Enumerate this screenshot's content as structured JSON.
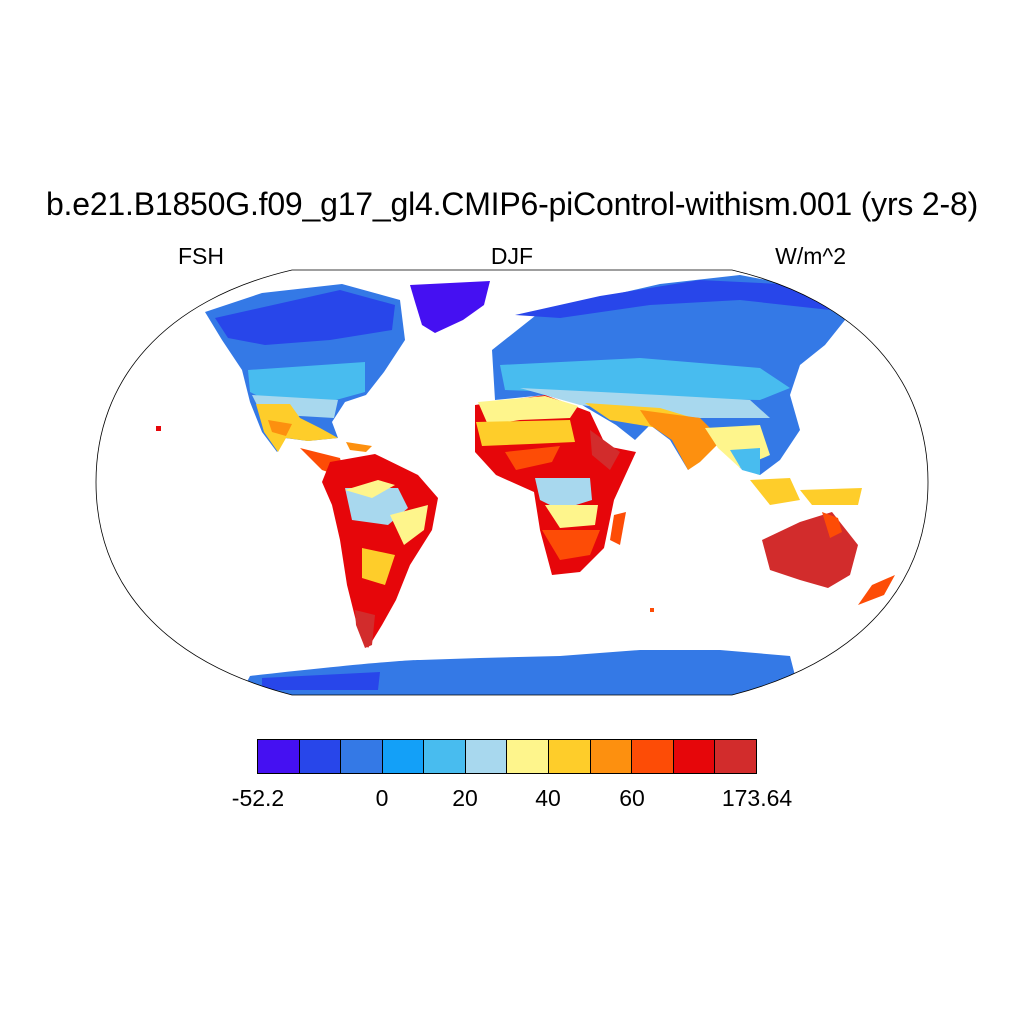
{
  "title": "b.e21.B1850G.f09_g17_gl4.CMIP6-piControl-withism.001 (yrs 2-8)",
  "subtitle_left": "FSH",
  "subtitle_center": "DJF",
  "subtitle_right": "W/m^2",
  "colorbar": {
    "colors": [
      "#4510f2",
      "#2846ea",
      "#3479e6",
      "#13a0f8",
      "#48bcef",
      "#a8d8ee",
      "#fef58c",
      "#fecd2a",
      "#fd900f",
      "#fd4c06",
      "#e6060a",
      "#d22c2c"
    ],
    "labels": [
      "-52.2",
      "0",
      "20",
      "40",
      "60",
      "173.64"
    ]
  }
}
